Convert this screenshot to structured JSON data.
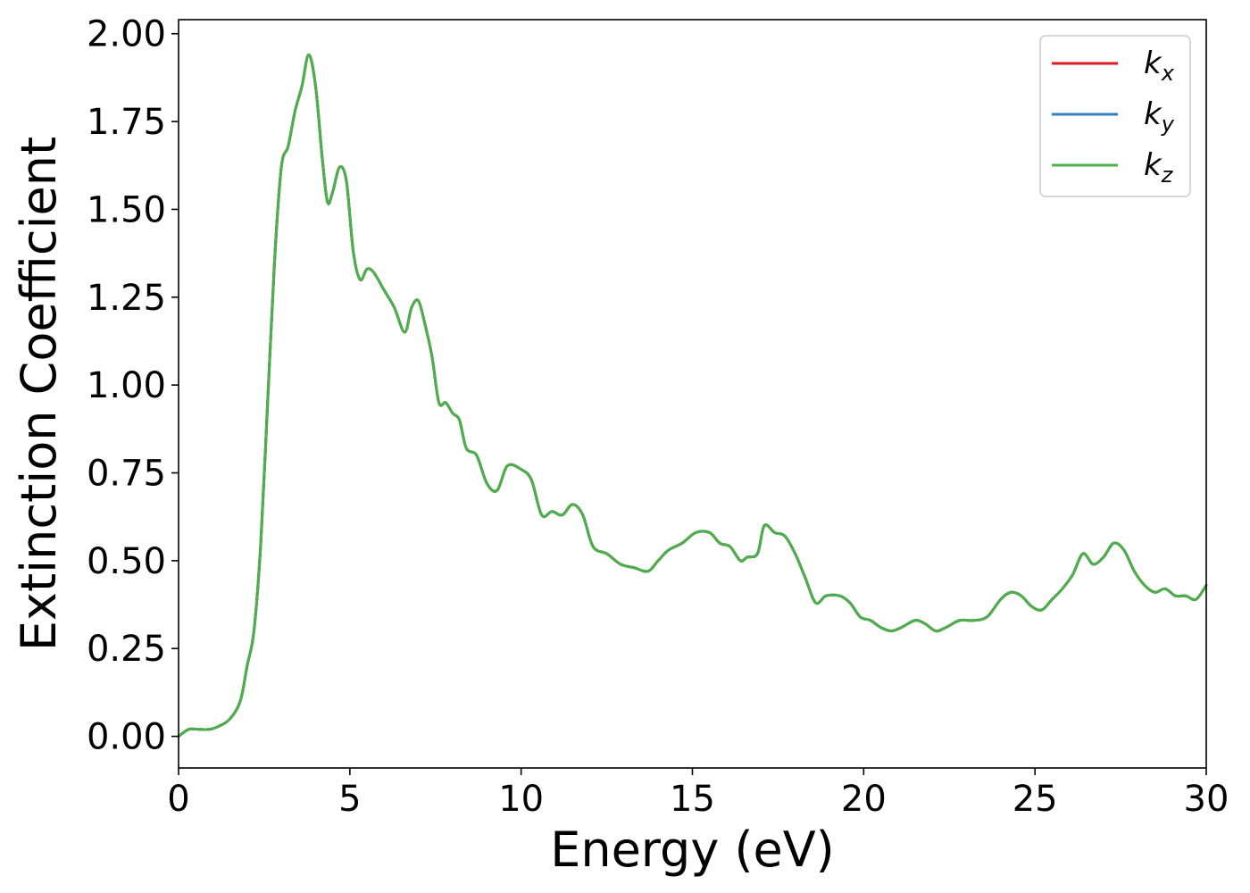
{
  "chart_data": {
    "type": "line",
    "title": "",
    "xlabel": "Energy (eV)",
    "ylabel": "Extinction Coefficient",
    "xlim": [
      0,
      30
    ],
    "ylim": [
      -0.09,
      2.04
    ],
    "xticks": [
      0,
      5,
      10,
      15,
      20,
      25,
      30
    ],
    "xtick_labels": [
      "0",
      "5",
      "10",
      "15",
      "20",
      "25",
      "30"
    ],
    "yticks": [
      0,
      0.25,
      0.5,
      0.75,
      1.0,
      1.25,
      1.5,
      1.75,
      2.0
    ],
    "ytick_labels": [
      "0.00",
      "0.25",
      "0.50",
      "0.75",
      "1.00",
      "1.25",
      "1.50",
      "1.75",
      "2.00"
    ],
    "grid": false,
    "legend_position": "top-right",
    "x": [
      0,
      0.3,
      0.6,
      0.9,
      1.2,
      1.5,
      1.8,
      2.0,
      2.2,
      2.4,
      2.6,
      2.8,
      3.0,
      3.2,
      3.4,
      3.6,
      3.8,
      4.0,
      4.2,
      4.35,
      4.5,
      4.7,
      4.9,
      5.1,
      5.3,
      5.5,
      5.7,
      6.0,
      6.3,
      6.6,
      6.8,
      7.0,
      7.2,
      7.4,
      7.6,
      7.8,
      8.0,
      8.2,
      8.4,
      8.7,
      9.0,
      9.3,
      9.6,
      10.0,
      10.3,
      10.6,
      10.9,
      11.2,
      11.5,
      11.8,
      12.1,
      12.5,
      12.9,
      13.3,
      13.7,
      14.0,
      14.3,
      14.7,
      15.1,
      15.5,
      15.8,
      16.1,
      16.4,
      16.6,
      16.9,
      17.1,
      17.4,
      17.7,
      18.0,
      18.3,
      18.6,
      18.9,
      19.3,
      19.6,
      19.9,
      20.2,
      20.5,
      20.8,
      21.1,
      21.5,
      21.8,
      22.1,
      22.4,
      22.8,
      23.2,
      23.6,
      24.0,
      24.3,
      24.6,
      24.9,
      25.2,
      25.5,
      25.8,
      26.1,
      26.4,
      26.7,
      27.0,
      27.3,
      27.6,
      27.9,
      28.2,
      28.5,
      28.8,
      29.1,
      29.4,
      29.7,
      30.0
    ],
    "series": [
      {
        "name": "k_x",
        "color": "#e41a1c",
        "values": [
          0.0,
          0.02,
          0.02,
          0.02,
          0.03,
          0.05,
          0.1,
          0.2,
          0.3,
          0.55,
          0.95,
          1.35,
          1.62,
          1.68,
          1.78,
          1.85,
          1.94,
          1.85,
          1.64,
          1.52,
          1.55,
          1.62,
          1.58,
          1.38,
          1.3,
          1.33,
          1.32,
          1.27,
          1.22,
          1.15,
          1.22,
          1.24,
          1.17,
          1.08,
          0.95,
          0.95,
          0.92,
          0.9,
          0.82,
          0.8,
          0.72,
          0.7,
          0.77,
          0.76,
          0.73,
          0.63,
          0.64,
          0.63,
          0.66,
          0.63,
          0.54,
          0.52,
          0.49,
          0.48,
          0.47,
          0.5,
          0.53,
          0.55,
          0.58,
          0.58,
          0.55,
          0.54,
          0.5,
          0.51,
          0.52,
          0.6,
          0.58,
          0.57,
          0.52,
          0.45,
          0.38,
          0.4,
          0.4,
          0.38,
          0.34,
          0.33,
          0.31,
          0.3,
          0.31,
          0.33,
          0.32,
          0.3,
          0.31,
          0.33,
          0.33,
          0.34,
          0.39,
          0.41,
          0.4,
          0.37,
          0.36,
          0.39,
          0.42,
          0.46,
          0.52,
          0.49,
          0.51,
          0.55,
          0.53,
          0.47,
          0.43,
          0.41,
          0.42,
          0.4,
          0.4,
          0.39,
          0.43
        ]
      },
      {
        "name": "k_y",
        "color": "#377eb8",
        "values": [
          0.0,
          0.02,
          0.02,
          0.02,
          0.03,
          0.05,
          0.1,
          0.2,
          0.3,
          0.55,
          0.95,
          1.35,
          1.62,
          1.68,
          1.78,
          1.85,
          1.94,
          1.85,
          1.64,
          1.52,
          1.55,
          1.62,
          1.58,
          1.38,
          1.3,
          1.33,
          1.32,
          1.27,
          1.22,
          1.15,
          1.22,
          1.24,
          1.17,
          1.08,
          0.95,
          0.95,
          0.92,
          0.9,
          0.82,
          0.8,
          0.72,
          0.7,
          0.77,
          0.76,
          0.73,
          0.63,
          0.64,
          0.63,
          0.66,
          0.63,
          0.54,
          0.52,
          0.49,
          0.48,
          0.47,
          0.5,
          0.53,
          0.55,
          0.58,
          0.58,
          0.55,
          0.54,
          0.5,
          0.51,
          0.52,
          0.6,
          0.58,
          0.57,
          0.52,
          0.45,
          0.38,
          0.4,
          0.4,
          0.38,
          0.34,
          0.33,
          0.31,
          0.3,
          0.31,
          0.33,
          0.32,
          0.3,
          0.31,
          0.33,
          0.33,
          0.34,
          0.39,
          0.41,
          0.4,
          0.37,
          0.36,
          0.39,
          0.42,
          0.46,
          0.52,
          0.49,
          0.51,
          0.55,
          0.53,
          0.47,
          0.43,
          0.41,
          0.42,
          0.4,
          0.4,
          0.39,
          0.43
        ]
      },
      {
        "name": "k_z",
        "color": "#4daf4a",
        "values": [
          0.0,
          0.02,
          0.02,
          0.02,
          0.03,
          0.05,
          0.1,
          0.2,
          0.3,
          0.55,
          0.95,
          1.35,
          1.62,
          1.68,
          1.78,
          1.85,
          1.94,
          1.85,
          1.64,
          1.52,
          1.55,
          1.62,
          1.58,
          1.38,
          1.3,
          1.33,
          1.32,
          1.27,
          1.22,
          1.15,
          1.22,
          1.24,
          1.17,
          1.08,
          0.95,
          0.95,
          0.92,
          0.9,
          0.82,
          0.8,
          0.72,
          0.7,
          0.77,
          0.76,
          0.73,
          0.63,
          0.64,
          0.63,
          0.66,
          0.63,
          0.54,
          0.52,
          0.49,
          0.48,
          0.47,
          0.5,
          0.53,
          0.55,
          0.58,
          0.58,
          0.55,
          0.54,
          0.5,
          0.51,
          0.52,
          0.6,
          0.58,
          0.57,
          0.52,
          0.45,
          0.38,
          0.4,
          0.4,
          0.38,
          0.34,
          0.33,
          0.31,
          0.3,
          0.31,
          0.33,
          0.32,
          0.3,
          0.31,
          0.33,
          0.33,
          0.34,
          0.39,
          0.41,
          0.4,
          0.37,
          0.36,
          0.39,
          0.42,
          0.46,
          0.52,
          0.49,
          0.51,
          0.55,
          0.53,
          0.47,
          0.43,
          0.41,
          0.42,
          0.4,
          0.4,
          0.39,
          0.43
        ]
      }
    ],
    "legend": [
      {
        "base": "k",
        "sub": "x",
        "color": "#e41a1c"
      },
      {
        "base": "k",
        "sub": "y",
        "color": "#377eb8"
      },
      {
        "base": "k",
        "sub": "z",
        "color": "#4daf4a"
      }
    ]
  }
}
